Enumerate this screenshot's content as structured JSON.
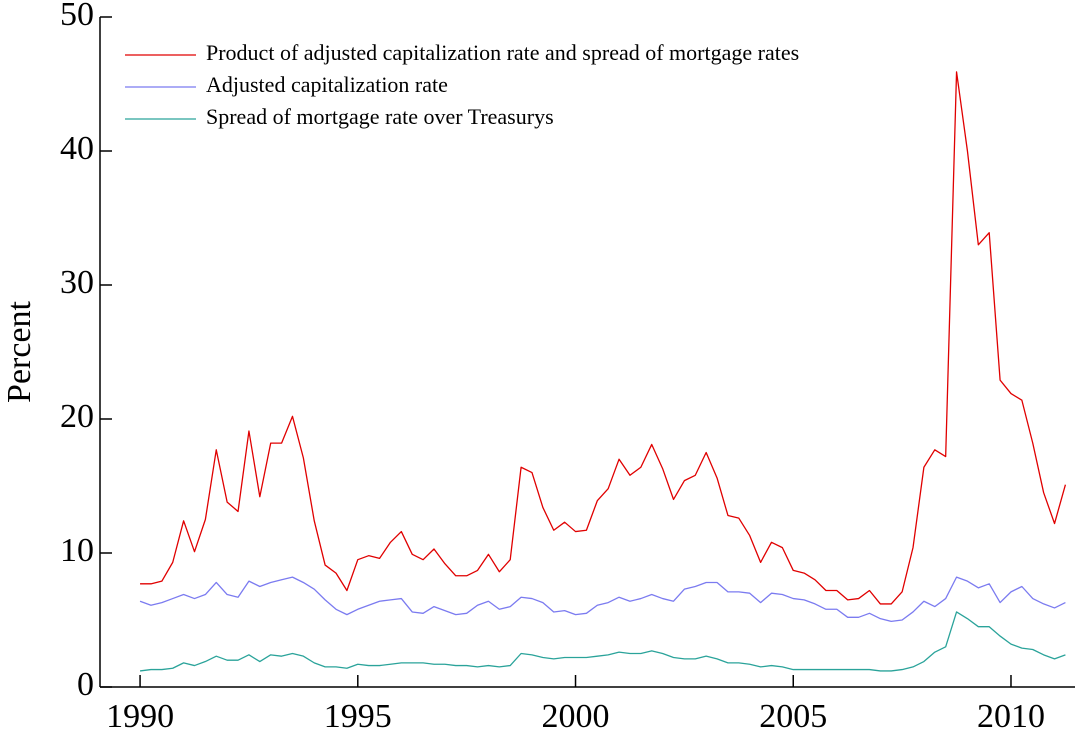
{
  "chart_data": {
    "type": "line",
    "y_label": "Percent",
    "x": [
      1990,
      1990.25,
      1990.5,
      1990.75,
      1991,
      1991.25,
      1991.5,
      1991.75,
      1992,
      1992.25,
      1992.5,
      1992.75,
      1993,
      1993.25,
      1993.5,
      1993.75,
      1994,
      1994.25,
      1994.5,
      1994.75,
      1995,
      1995.25,
      1995.5,
      1995.75,
      1996,
      1996.25,
      1996.5,
      1996.75,
      1997,
      1997.25,
      1997.5,
      1997.75,
      1998,
      1998.25,
      1998.5,
      1998.75,
      1999,
      1999.25,
      1999.5,
      1999.75,
      2000,
      2000.25,
      2000.5,
      2000.75,
      2001,
      2001.25,
      2001.5,
      2001.75,
      2002,
      2002.25,
      2002.5,
      2002.75,
      2003,
      2003.25,
      2003.5,
      2003.75,
      2004,
      2004.25,
      2004.5,
      2004.75,
      2005,
      2005.25,
      2005.5,
      2005.75,
      2006,
      2006.25,
      2006.5,
      2006.75,
      2007,
      2007.25,
      2007.5,
      2007.75,
      2008,
      2008.25,
      2008.5,
      2008.75,
      2009,
      2009.25,
      2009.5,
      2009.75,
      2010,
      2010.25,
      2010.5,
      2010.75,
      2011,
      2011.25
    ],
    "series": [
      {
        "name": "Product of adjusted capitalization rate and spread of mortgage rates",
        "color": "#e00000",
        "values": [
          7.7,
          7.7,
          7.9,
          9.3,
          12.4,
          10.1,
          12.5,
          17.7,
          13.8,
          13.1,
          19.1,
          14.2,
          18.2,
          18.2,
          20.2,
          17.1,
          12.4,
          9.1,
          8.5,
          7.2,
          9.5,
          9.8,
          9.6,
          10.8,
          11.6,
          9.9,
          9.5,
          10.3,
          9.2,
          8.3,
          8.3,
          8.7,
          9.9,
          8.6,
          9.5,
          16.4,
          16.0,
          13.4,
          11.7,
          12.3,
          11.6,
          11.7,
          13.9,
          14.8,
          17.0,
          15.8,
          16.4,
          18.1,
          16.3,
          14.0,
          15.4,
          15.8,
          17.5,
          15.6,
          12.8,
          12.6,
          11.3,
          9.3,
          10.8,
          10.4,
          8.7,
          8.5,
          8.0,
          7.2,
          7.2,
          6.5,
          6.6,
          7.2,
          6.2,
          6.2,
          7.1,
          10.4,
          16.4,
          17.7,
          17.2,
          45.9,
          40.0,
          33.0,
          33.9,
          22.9,
          21.9,
          21.4,
          18.2,
          14.5,
          12.2,
          15.1
        ]
      },
      {
        "name": "Adjusted capitalization rate",
        "color": "#7b7bf0",
        "values": [
          6.4,
          6.1,
          6.3,
          6.6,
          6.9,
          6.6,
          6.9,
          7.8,
          6.9,
          6.7,
          7.9,
          7.5,
          7.8,
          8.0,
          8.2,
          7.8,
          7.3,
          6.5,
          5.8,
          5.4,
          5.8,
          6.1,
          6.4,
          6.5,
          6.6,
          5.6,
          5.5,
          6.0,
          5.7,
          5.4,
          5.5,
          6.1,
          6.4,
          5.8,
          6.0,
          6.7,
          6.6,
          6.3,
          5.6,
          5.7,
          5.4,
          5.5,
          6.1,
          6.3,
          6.7,
          6.4,
          6.6,
          6.9,
          6.6,
          6.4,
          7.3,
          7.5,
          7.8,
          7.8,
          7.1,
          7.1,
          7.0,
          6.3,
          7.0,
          6.9,
          6.6,
          6.5,
          6.2,
          5.8,
          5.8,
          5.2,
          5.2,
          5.5,
          5.1,
          4.9,
          5.0,
          5.6,
          6.4,
          6.0,
          6.6,
          8.2,
          7.9,
          7.4,
          7.7,
          6.3,
          7.1,
          7.5,
          6.6,
          6.2,
          5.9,
          6.3
        ]
      },
      {
        "name": "Spread of mortgage rate over Treasurys",
        "color": "#2aa39a",
        "values": [
          1.2,
          1.3,
          1.3,
          1.4,
          1.8,
          1.6,
          1.9,
          2.3,
          2.0,
          2.0,
          2.4,
          1.9,
          2.4,
          2.3,
          2.5,
          2.3,
          1.8,
          1.5,
          1.5,
          1.4,
          1.7,
          1.6,
          1.6,
          1.7,
          1.8,
          1.8,
          1.8,
          1.7,
          1.7,
          1.6,
          1.6,
          1.5,
          1.6,
          1.5,
          1.6,
          2.5,
          2.4,
          2.2,
          2.1,
          2.2,
          2.2,
          2.2,
          2.3,
          2.4,
          2.6,
          2.5,
          2.5,
          2.7,
          2.5,
          2.2,
          2.1,
          2.1,
          2.3,
          2.1,
          1.8,
          1.8,
          1.7,
          1.5,
          1.6,
          1.5,
          1.3,
          1.3,
          1.3,
          1.3,
          1.3,
          1.3,
          1.3,
          1.3,
          1.2,
          1.2,
          1.3,
          1.5,
          1.9,
          2.6,
          3.0,
          5.6,
          5.1,
          4.5,
          4.5,
          3.8,
          3.2,
          2.9,
          2.8,
          2.4,
          2.1,
          2.4
        ]
      }
    ],
    "xlim": [
      1989.08,
      2011.47
    ],
    "xticks": [
      1990,
      1995,
      2000,
      2005,
      2010
    ],
    "ylim": [
      0,
      50
    ],
    "yticks": [
      0,
      10,
      20,
      30,
      40,
      50
    ],
    "grid": false
  }
}
